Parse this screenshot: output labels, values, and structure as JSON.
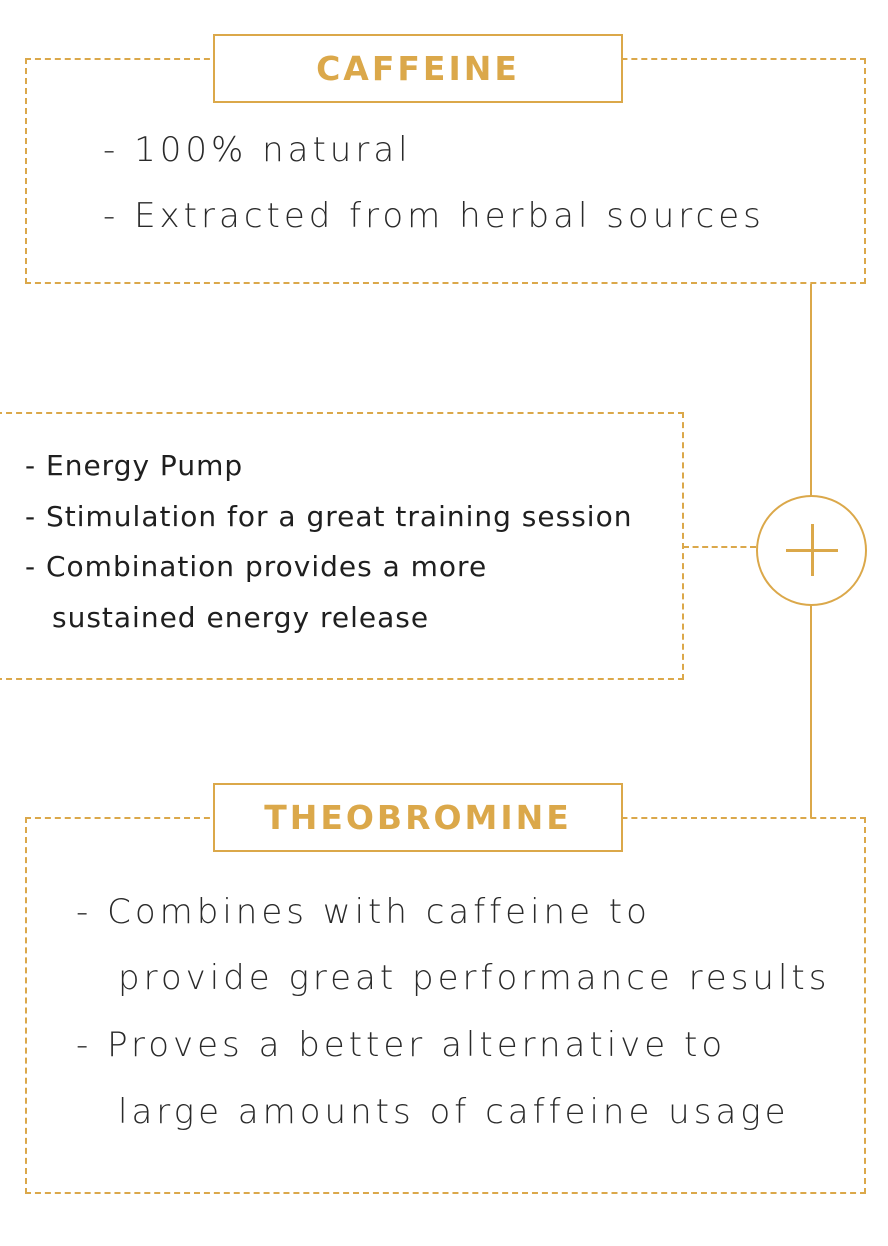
{
  "caffeine": {
    "title": "CAFFEINE",
    "items": [
      "- 100% natural",
      "- Extracted from herbal sources"
    ]
  },
  "benefits": {
    "items": [
      "-  Energy Pump",
      "-  Stimulation for a great training session",
      "-  Combination provides a more",
      "sustained energy release"
    ]
  },
  "theobromine": {
    "title": "THEOBROMINE",
    "items": [
      "- Combines with caffeine to",
      "provide great performance results",
      "- Proves a better alternative to",
      "large amounts of caffeine usage"
    ]
  },
  "colors": {
    "accent": "#dba84a",
    "text": "#2a2a2a"
  },
  "icons": {
    "connector": "plus-icon"
  }
}
